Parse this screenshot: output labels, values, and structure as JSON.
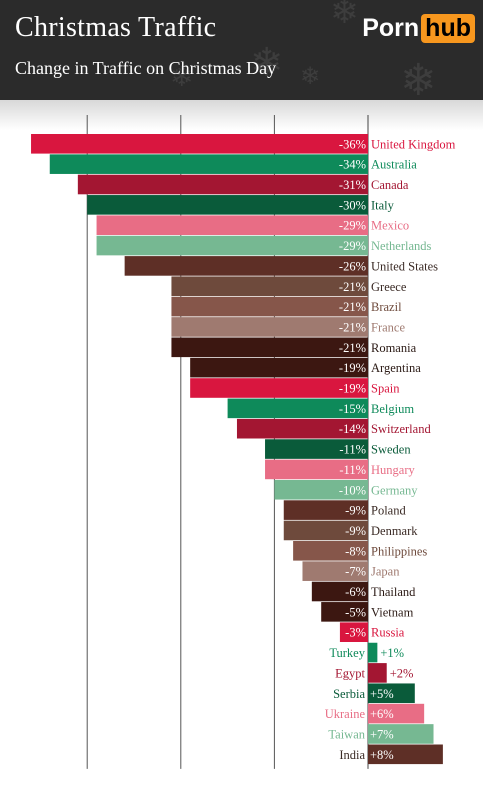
{
  "header": {
    "title": "Christmas Traffic",
    "subtitle": "Change in Traffic on Christmas Day",
    "logo_left": "Porn",
    "logo_right": "hub"
  },
  "colors": {
    "header_bg": "#2b2b2b",
    "logo_accent": "#f7971e",
    "palette": [
      "#d9163f",
      "#0e8a5a",
      "#a31632",
      "#0a5b3a",
      "#e86d85",
      "#76b892",
      "#5e2f26",
      "#6e4a3c",
      "#86564a",
      "#9f7a70",
      "#3c1711",
      "#b92338"
    ]
  },
  "chart_data": {
    "type": "bar",
    "orientation": "horizontal",
    "title": "Christmas Traffic",
    "subtitle": "Change in Traffic on Christmas Day",
    "xlabel": "",
    "ylabel": "",
    "unit": "%",
    "xlim": [
      -36,
      8
    ],
    "grid": true,
    "categories": [
      "United Kingdom",
      "Australia",
      "Canada",
      "Italy",
      "Mexico",
      "Netherlands",
      "United States",
      "Greece",
      "Brazil",
      "France",
      "Romania",
      "Argentina",
      "Spain",
      "Belgium",
      "Switzerland",
      "Sweden",
      "Hungary",
      "Germany",
      "Poland",
      "Denmark",
      "Philippines",
      "Japan",
      "Thailand",
      "Vietnam",
      "Russia",
      "Turkey",
      "Egypt",
      "Serbia",
      "Ukraine",
      "Taiwan",
      "India"
    ],
    "values": [
      -36,
      -34,
      -31,
      -30,
      -29,
      -29,
      -26,
      -21,
      -21,
      -21,
      -21,
      -19,
      -19,
      -15,
      -14,
      -11,
      -11,
      -10,
      -9,
      -9,
      -8,
      -7,
      -6,
      -5,
      -3,
      1,
      2,
      5,
      6,
      7,
      8
    ],
    "value_labels": [
      "-36%",
      "-34%",
      "-31%",
      "-30%",
      "-29%",
      "-29%",
      "-26%",
      "-21%",
      "-21%",
      "-21%",
      "-21%",
      "-19%",
      "-19%",
      "-15%",
      "-14%",
      "-11%",
      "-11%",
      "-10%",
      "-9%",
      "-9%",
      "-8%",
      "-7%",
      "-6%",
      "-5%",
      "-3%",
      "+1%",
      "+2%",
      "+5%",
      "+6%",
      "+7%",
      "+8%"
    ],
    "bar_colors": [
      "#d9163f",
      "#0e8a5a",
      "#a31632",
      "#0a5b3a",
      "#e86d85",
      "#76b892",
      "#5e2f26",
      "#6e4a3c",
      "#86564a",
      "#9f7a70",
      "#3c1711",
      "#3c1711",
      "#d9163f",
      "#0e8a5a",
      "#a31632",
      "#0a5b3a",
      "#e86d85",
      "#76b892",
      "#5e2f26",
      "#6e4a3c",
      "#86564a",
      "#9f7a70",
      "#3c1711",
      "#3c1711",
      "#d9163f",
      "#0e8a5a",
      "#a31632",
      "#0a5b3a",
      "#e86d85",
      "#76b892",
      "#5e2f26"
    ],
    "label_colors": [
      "#d9163f",
      "#0e8a5a",
      "#a31632",
      "#0a5b3a",
      "#e86d85",
      "#76b892",
      "#3a2a25",
      "#3a2a25",
      "#6e4a3c",
      "#9f7a70",
      "#2b1a15",
      "#2b1a15",
      "#d9163f",
      "#0e8a5a",
      "#a31632",
      "#0a5b3a",
      "#e86d85",
      "#76b892",
      "#3a2a25",
      "#3a2a25",
      "#6e4a3c",
      "#9f7a70",
      "#2b1a15",
      "#2b1a15",
      "#d9163f",
      "#0e8a5a",
      "#a31632",
      "#0a5b3a",
      "#e86d85",
      "#76b892",
      "#3a2a25"
    ]
  }
}
